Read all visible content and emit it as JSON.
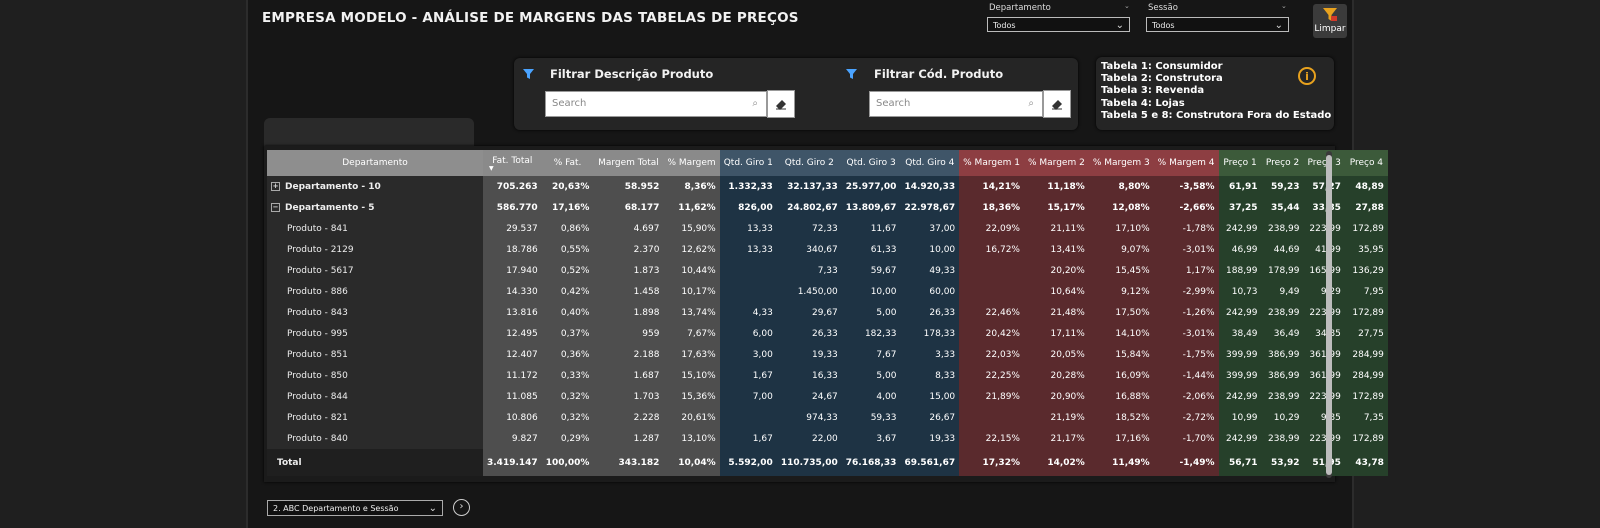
{
  "title": "EMPRESA MODELO - ANÁLISE DE MARGENS DAS TABELAS DE PREÇOS",
  "slicers": {
    "departamento": {
      "label": "Departamento",
      "value": "Todos"
    },
    "sessao": {
      "label": "Sessão",
      "value": "Todos"
    }
  },
  "limpar_label": "Limpar",
  "filters": {
    "descricao": {
      "label": "Filtrar Descrição Produto",
      "placeholder": "Search"
    },
    "codigo": {
      "label": "Filtrar Cód. Produto",
      "placeholder": "Search"
    }
  },
  "info_lines": [
    "Tabela 1: Consumidor",
    "Tabela 2: Construtora",
    "Tabela 3: Revenda",
    "Tabela 4: Lojas",
    "Tabela 5 e 8: Construtora Fora do Estado"
  ],
  "info_icon": "i",
  "table": {
    "headers": [
      "Departamento",
      "Fat. Total",
      "% Fat.",
      "Margem Total",
      "% Margem",
      "Qtd. Giro 1",
      "Qtd. Giro 2",
      "Qtd. Giro 3",
      "Qtd. Giro 4",
      "% Margem 1",
      "% Margem 2",
      "% Margem 3",
      "% Margem 4",
      "Preço 1",
      "Preço 2",
      "Preço 3",
      "Preço 4"
    ],
    "sort_indicator": "▼",
    "rows": [
      {
        "expander": "+",
        "cells": [
          "Departamento - 10",
          "705.263",
          "20,63%",
          "58.952",
          "8,36%",
          "1.332,33",
          "32.137,33",
          "25.977,00",
          "14.920,33",
          "14,21%",
          "11,18%",
          "8,80%",
          "-3,58%",
          "61,91",
          "59,23",
          "57,27",
          "48,89"
        ]
      },
      {
        "expander": "−",
        "cells": [
          "Departamento - 5",
          "586.770",
          "17,16%",
          "68.177",
          "11,62%",
          "826,00",
          "24.802,67",
          "13.809,67",
          "22.978,67",
          "18,36%",
          "15,17%",
          "12,08%",
          "-2,66%",
          "37,25",
          "35,44",
          "33,85",
          "27,88"
        ]
      },
      {
        "cells": [
          "Produto - 841",
          "29.537",
          "0,86%",
          "4.697",
          "15,90%",
          "13,33",
          "72,33",
          "11,67",
          "37,00",
          "22,09%",
          "21,11%",
          "17,10%",
          "-1,78%",
          "242,99",
          "238,99",
          "223,99",
          "172,89"
        ]
      },
      {
        "cells": [
          "Produto - 2129",
          "18.786",
          "0,55%",
          "2.370",
          "12,62%",
          "13,33",
          "340,67",
          "61,33",
          "10,00",
          "16,72%",
          "13,41%",
          "9,07%",
          "-3,01%",
          "46,99",
          "44,69",
          "41,99",
          "35,95"
        ]
      },
      {
        "cells": [
          "Produto - 5617",
          "17.940",
          "0,52%",
          "1.873",
          "10,44%",
          "",
          "7,33",
          "59,67",
          "49,33",
          "",
          "20,20%",
          "15,45%",
          "1,17%",
          "188,99",
          "178,99",
          "165,99",
          "136,29"
        ]
      },
      {
        "cells": [
          "Produto - 886",
          "14.330",
          "0,42%",
          "1.458",
          "10,17%",
          "",
          "1.450,00",
          "10,00",
          "60,00",
          "",
          "10,64%",
          "9,12%",
          "-2,99%",
          "10,73",
          "9,49",
          "9,29",
          "7,95"
        ]
      },
      {
        "cells": [
          "Produto - 843",
          "13.816",
          "0,40%",
          "1.898",
          "13,74%",
          "4,33",
          "29,67",
          "5,00",
          "26,33",
          "22,46%",
          "21,48%",
          "17,50%",
          "-1,26%",
          "242,99",
          "238,99",
          "223,99",
          "172,89"
        ]
      },
      {
        "cells": [
          "Produto - 995",
          "12.495",
          "0,37%",
          "959",
          "7,67%",
          "6,00",
          "26,33",
          "182,33",
          "178,33",
          "20,42%",
          "17,11%",
          "14,10%",
          "-3,01%",
          "38,49",
          "36,49",
          "34,85",
          "27,75"
        ]
      },
      {
        "cells": [
          "Produto - 851",
          "12.407",
          "0,36%",
          "2.188",
          "17,63%",
          "3,00",
          "19,33",
          "7,67",
          "3,33",
          "22,03%",
          "20,05%",
          "15,84%",
          "-1,75%",
          "399,99",
          "386,99",
          "361,99",
          "284,99"
        ]
      },
      {
        "cells": [
          "Produto - 850",
          "11.172",
          "0,33%",
          "1.687",
          "15,10%",
          "1,67",
          "16,33",
          "5,00",
          "8,33",
          "22,25%",
          "20,28%",
          "16,09%",
          "-1,44%",
          "399,99",
          "386,99",
          "361,99",
          "284,99"
        ]
      },
      {
        "cells": [
          "Produto - 844",
          "11.085",
          "0,32%",
          "1.703",
          "15,36%",
          "7,00",
          "24,67",
          "4,00",
          "15,00",
          "21,89%",
          "20,90%",
          "16,88%",
          "-2,06%",
          "242,99",
          "238,99",
          "223,99",
          "172,89"
        ]
      },
      {
        "cells": [
          "Produto - 821",
          "10.806",
          "0,32%",
          "2.228",
          "20,61%",
          "",
          "974,33",
          "59,33",
          "26,67",
          "",
          "21,19%",
          "18,52%",
          "-2,72%",
          "10,99",
          "10,29",
          "9,85",
          "7,35"
        ]
      },
      {
        "cells": [
          "Produto - 840",
          "9.827",
          "0,29%",
          "1.287",
          "13,10%",
          "1,67",
          "22,00",
          "3,67",
          "19,33",
          "22,15%",
          "21,17%",
          "17,16%",
          "-1,70%",
          "242,99",
          "238,99",
          "223,99",
          "172,89"
        ]
      }
    ],
    "total": [
      "Total",
      "3.419.147",
      "100,00%",
      "343.182",
      "10,04%",
      "5.592,00",
      "110.735,00",
      "76.168,33",
      "69.561,67",
      "17,32%",
      "14,02%",
      "11,49%",
      "-1,49%",
      "56,71",
      "53,92",
      "51,95",
      "43,78"
    ]
  },
  "bottom": {
    "page_select": "2. ABC Departamento e Sessão",
    "go_icon": "›"
  },
  "colors": {
    "giro": "#1e3344",
    "margem": "#5a2a2d",
    "preco": "#26402a",
    "fat": "#4e4e4e",
    "accent": "#e8a21e"
  }
}
